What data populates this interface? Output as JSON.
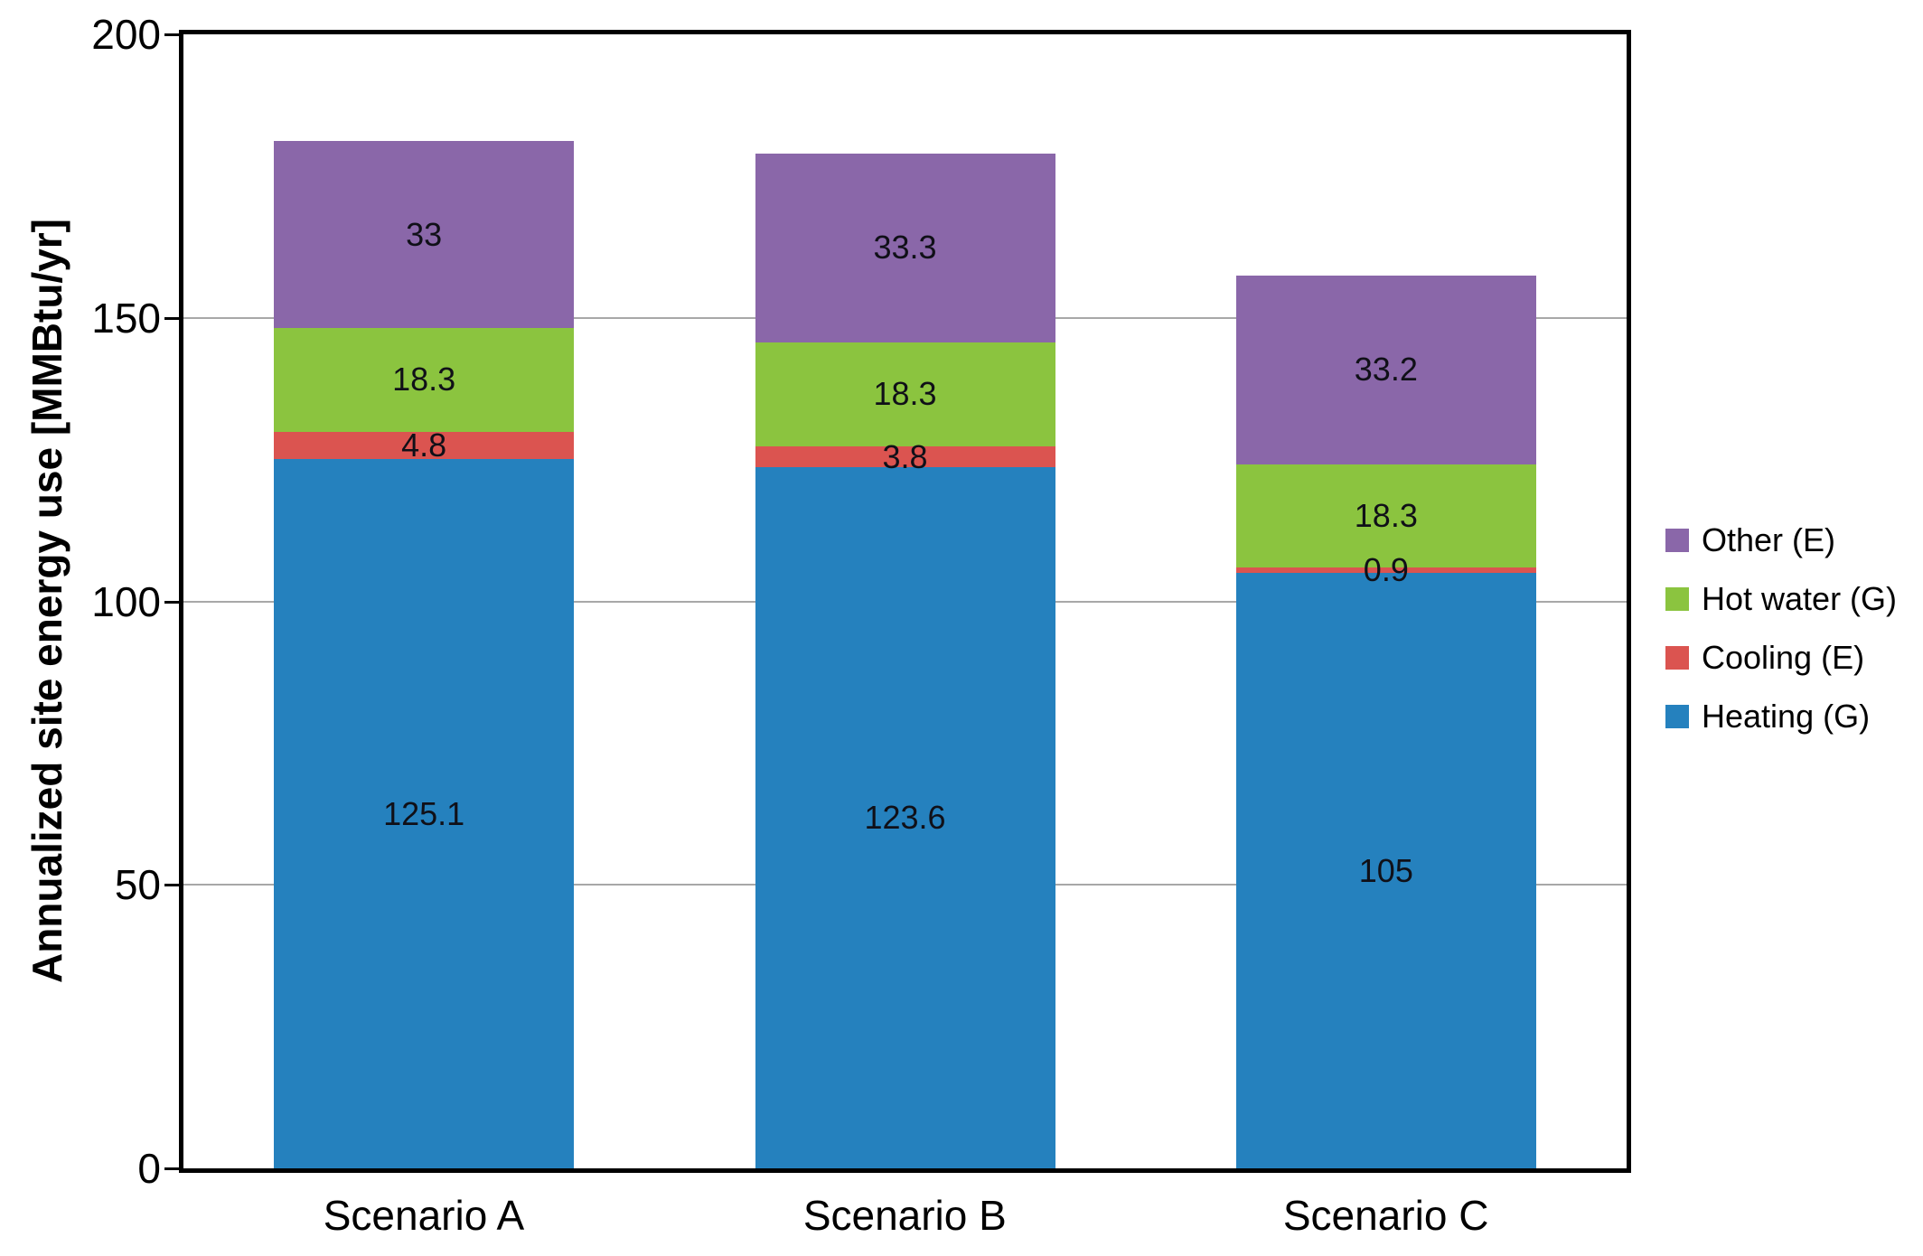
{
  "chart_data": {
    "type": "bar",
    "stacked": true,
    "title": "",
    "xlabel": "",
    "ylabel": "Annualized site energy use [MMBtu/yr]",
    "ylim": [
      0,
      200
    ],
    "yticks": [
      0,
      50,
      100,
      150,
      200
    ],
    "grid": "horizontal",
    "grid_color": "#a8a8a8",
    "axis_border_color": "#000000",
    "legend_position": "right",
    "legend_order_top_to_bottom": [
      "Other (E)",
      "Hot water (G)",
      "Cooling (E)",
      "Heating (G)"
    ],
    "categories": [
      "Scenario A",
      "Scenario B",
      "Scenario C"
    ],
    "series": [
      {
        "name": "Heating (G)",
        "color": "#2581be",
        "values": [
          125.1,
          123.6,
          105
        ]
      },
      {
        "name": "Cooling (E)",
        "color": "#db5450",
        "values": [
          4.8,
          3.8,
          0.9
        ]
      },
      {
        "name": "Hot water (G)",
        "color": "#8bc43f",
        "values": [
          18.3,
          18.3,
          18.3
        ]
      },
      {
        "name": "Other (E)",
        "color": "#8a67a9",
        "values": [
          33,
          33.3,
          33.2
        ]
      }
    ],
    "bar_totals": [
      181.2,
      179.0,
      157.4
    ],
    "value_label_color": "#101018"
  }
}
